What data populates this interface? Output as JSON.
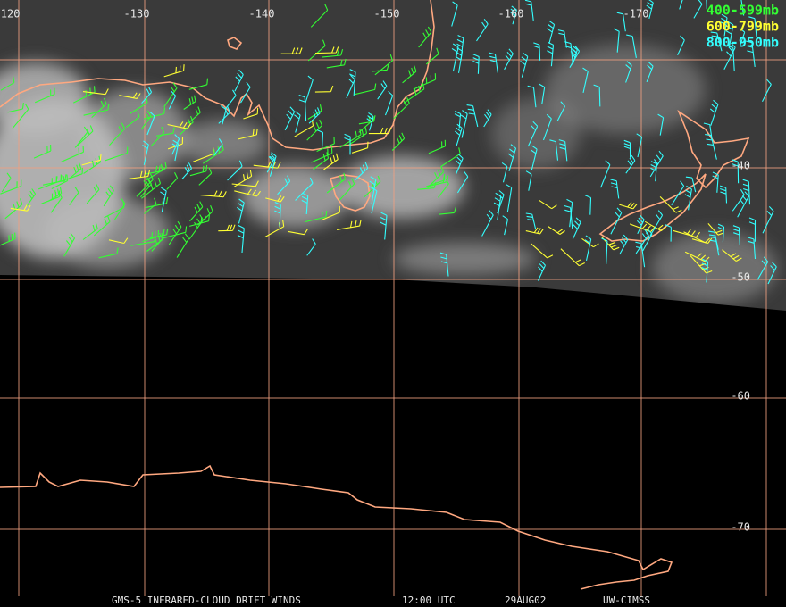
{
  "map": {
    "longitude_labels": [
      "-120",
      "-130",
      "-140",
      "-150",
      "-160",
      "-170"
    ],
    "latitude_labels": [
      "-40",
      "-50",
      "-60",
      "-70"
    ],
    "legend": [
      {
        "label": "400-599mb",
        "color": "#33ff33"
      },
      {
        "label": "600-799mb",
        "color": "#ffff33"
      },
      {
        "label": "800-950mb",
        "color": "#33ffff"
      }
    ],
    "footer": {
      "satellite": "GMS-5 INFRARED-CLOUD DRIFT WINDS",
      "time": "12:00 UTC",
      "date": "29AUG02",
      "source": "UW-CIMSS"
    }
  }
}
